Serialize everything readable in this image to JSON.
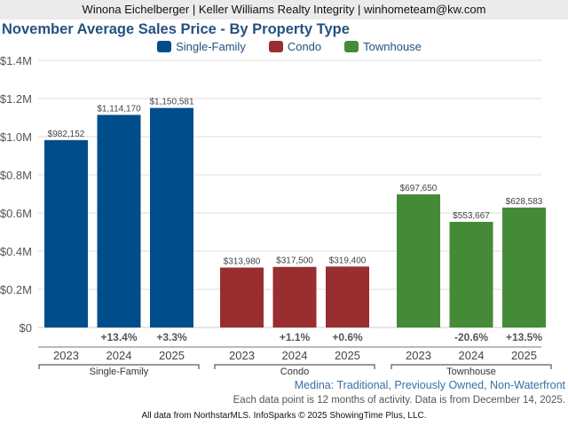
{
  "header": {
    "agent_line": "Winona Eichelberger | Keller Williams Realty Integrity | winhometeam@kw.com"
  },
  "footer": {
    "subtitle": "Medina: Traditional, Previously Owned, Non-Waterfront",
    "note": "Each data point is 12 months of activity. Data is from December 14, 2025.",
    "source": "All data from NorthstarMLS. InfoSparks © 2025 ShowingTime Plus, LLC."
  },
  "chart_data": {
    "type": "bar",
    "title": "November Average Sales Price - By Property Type",
    "xlabel": "",
    "ylabel": "",
    "ylim": [
      0,
      1400000
    ],
    "grid": true,
    "legend_position": "top-center",
    "y_ticks": [
      {
        "value": 0,
        "label": "$0"
      },
      {
        "value": 200000,
        "label": "$0.2M"
      },
      {
        "value": 400000,
        "label": "$0.4M"
      },
      {
        "value": 600000,
        "label": "$0.6M"
      },
      {
        "value": 800000,
        "label": "$0.8M"
      },
      {
        "value": 1000000,
        "label": "$1.0M"
      },
      {
        "value": 1200000,
        "label": "$1.2M"
      },
      {
        "value": 1400000,
        "label": "$1.4M"
      }
    ],
    "categories": [
      "2023",
      "2024",
      "2025"
    ],
    "series": [
      {
        "name": "Single-Family",
        "color": "#004d8c",
        "values": [
          982152,
          1114170,
          1150581
        ],
        "value_labels": [
          "$982,152",
          "$1,114,170",
          "$1,150,581"
        ],
        "change_labels": [
          "",
          "+13.4%",
          "+3.3%"
        ]
      },
      {
        "name": "Condo",
        "color": "#982e30",
        "values": [
          313980,
          317500,
          319400
        ],
        "value_labels": [
          "$313,980",
          "$317,500",
          "$319,400"
        ],
        "change_labels": [
          "",
          "+1.1%",
          "+0.6%"
        ]
      },
      {
        "name": "Townhouse",
        "color": "#458b37",
        "values": [
          697650,
          553667,
          628583
        ],
        "value_labels": [
          "$697,650",
          "$553,667",
          "$628,583"
        ],
        "change_labels": [
          "",
          "-20.6%",
          "+13.5%"
        ]
      }
    ]
  }
}
